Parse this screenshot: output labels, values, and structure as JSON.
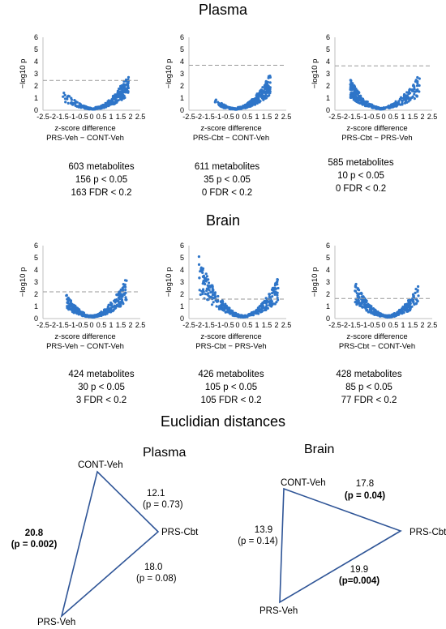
{
  "sections": {
    "plasma_title": "Plasma",
    "brain_title": "Brain",
    "euclid_title": "Euclidian distances"
  },
  "volcano": {
    "ylabel": "−log10 p",
    "xlabel": "z-score difference",
    "xticks": [
      "-2.5",
      "-2",
      "-1.5",
      "-1",
      "-0.5",
      "0",
      "0.5",
      "1",
      "1.5",
      "2",
      "2.5"
    ],
    "yticks": [
      "0",
      "1",
      "2",
      "3",
      "4",
      "5",
      "6"
    ]
  },
  "chart_data": [
    {
      "id": "plasma-1",
      "type": "scatter",
      "comparison": "PRS-Veh − CONT-Veh",
      "threshold": 2.45,
      "ylim": [
        0,
        6
      ],
      "xlim": [
        -2.5,
        2.5
      ],
      "spread": {
        "kind": "right",
        "center": 0.2,
        "min": -1.6,
        "max": 1.9
      },
      "n": 603,
      "stats": [
        "603 metabolites",
        "156 p < 0.05",
        "163 FDR < 0.2"
      ]
    },
    {
      "id": "plasma-2",
      "type": "scatter",
      "comparison": "PRS-Cbt − CONT-Veh",
      "threshold": 3.7,
      "ylim": [
        0,
        6
      ],
      "xlim": [
        -2.5,
        2.5
      ],
      "spread": {
        "kind": "right",
        "center": 0.0,
        "min": -1.2,
        "max": 1.7
      },
      "n": 611,
      "stats": [
        "611 metabolites",
        "35 p < 0.05",
        "0 FDR < 0.2"
      ]
    },
    {
      "id": "plasma-3",
      "type": "scatter",
      "comparison": "PRS-Cbt − PRS-Veh",
      "threshold": 3.65,
      "ylim": [
        0,
        6
      ],
      "xlim": [
        -2.5,
        2.5
      ],
      "spread": {
        "kind": "left",
        "center": -0.2,
        "min": -1.7,
        "max": 1.9
      },
      "n": 585,
      "stats": [
        "585 metabolites",
        "10 p < 0.05",
        "0 FDR < 0.2"
      ]
    },
    {
      "id": "brain-1",
      "type": "scatter",
      "comparison": "PRS-Veh − CONT-Veh",
      "threshold": 2.2,
      "ylim": [
        0,
        6
      ],
      "xlim": [
        -2.5,
        2.5
      ],
      "spread": {
        "kind": "both",
        "center": 0.0,
        "min": -1.3,
        "max": 1.8
      },
      "n": 424,
      "stats": [
        "424 metabolites",
        "30 p < 0.05",
        "3 FDR < 0.2"
      ]
    },
    {
      "id": "brain-2",
      "type": "scatter",
      "comparison": "PRS-Cbt − PRS-Veh",
      "threshold": 1.6,
      "ylim": [
        0,
        6
      ],
      "xlim": [
        -2.5,
        2.5
      ],
      "spread": {
        "kind": "both",
        "center": 0.3,
        "min": -2.0,
        "max": 2.1
      },
      "n": 426,
      "stats": [
        "426 metabolites",
        "105 p < 0.05",
        "105 FDR < 0.2"
      ]
    },
    {
      "id": "brain-3",
      "type": "scatter",
      "comparison": "PRS-Cbt − CONT-Veh",
      "threshold": 1.65,
      "ylim": [
        0,
        6
      ],
      "xlim": [
        -2.5,
        2.5
      ],
      "spread": {
        "kind": "both",
        "center": 0.2,
        "min": -1.5,
        "max": 1.8
      },
      "n": 428,
      "stats": [
        "428 metabolites",
        "85 p < 0.05",
        "77 FDR < 0.2"
      ]
    }
  ],
  "triangles": {
    "plasma": {
      "title": "Plasma",
      "nodes": {
        "a": "CONT-Veh",
        "b": "PRS-Cbt",
        "c": "PRS-Veh"
      },
      "edges": {
        "ab": {
          "value": "12.1",
          "p": "(p = 0.73)"
        },
        "bc": {
          "value": "18.0",
          "p": "(p = 0.08)"
        },
        "ac": {
          "value": "20.8",
          "p": "(p = 0.002)"
        }
      }
    },
    "brain": {
      "title": "Brain",
      "nodes": {
        "a": "CONT-Veh",
        "b": "PRS-Cbt",
        "c": "PRS-Veh"
      },
      "edges": {
        "ab": {
          "value": "17.8",
          "p": "(p = 0.04)"
        },
        "bc": {
          "value": "19.9",
          "p": "(p=0.004)"
        },
        "ac": {
          "value": "13.9",
          "p": "(p = 0.14)"
        }
      }
    }
  }
}
